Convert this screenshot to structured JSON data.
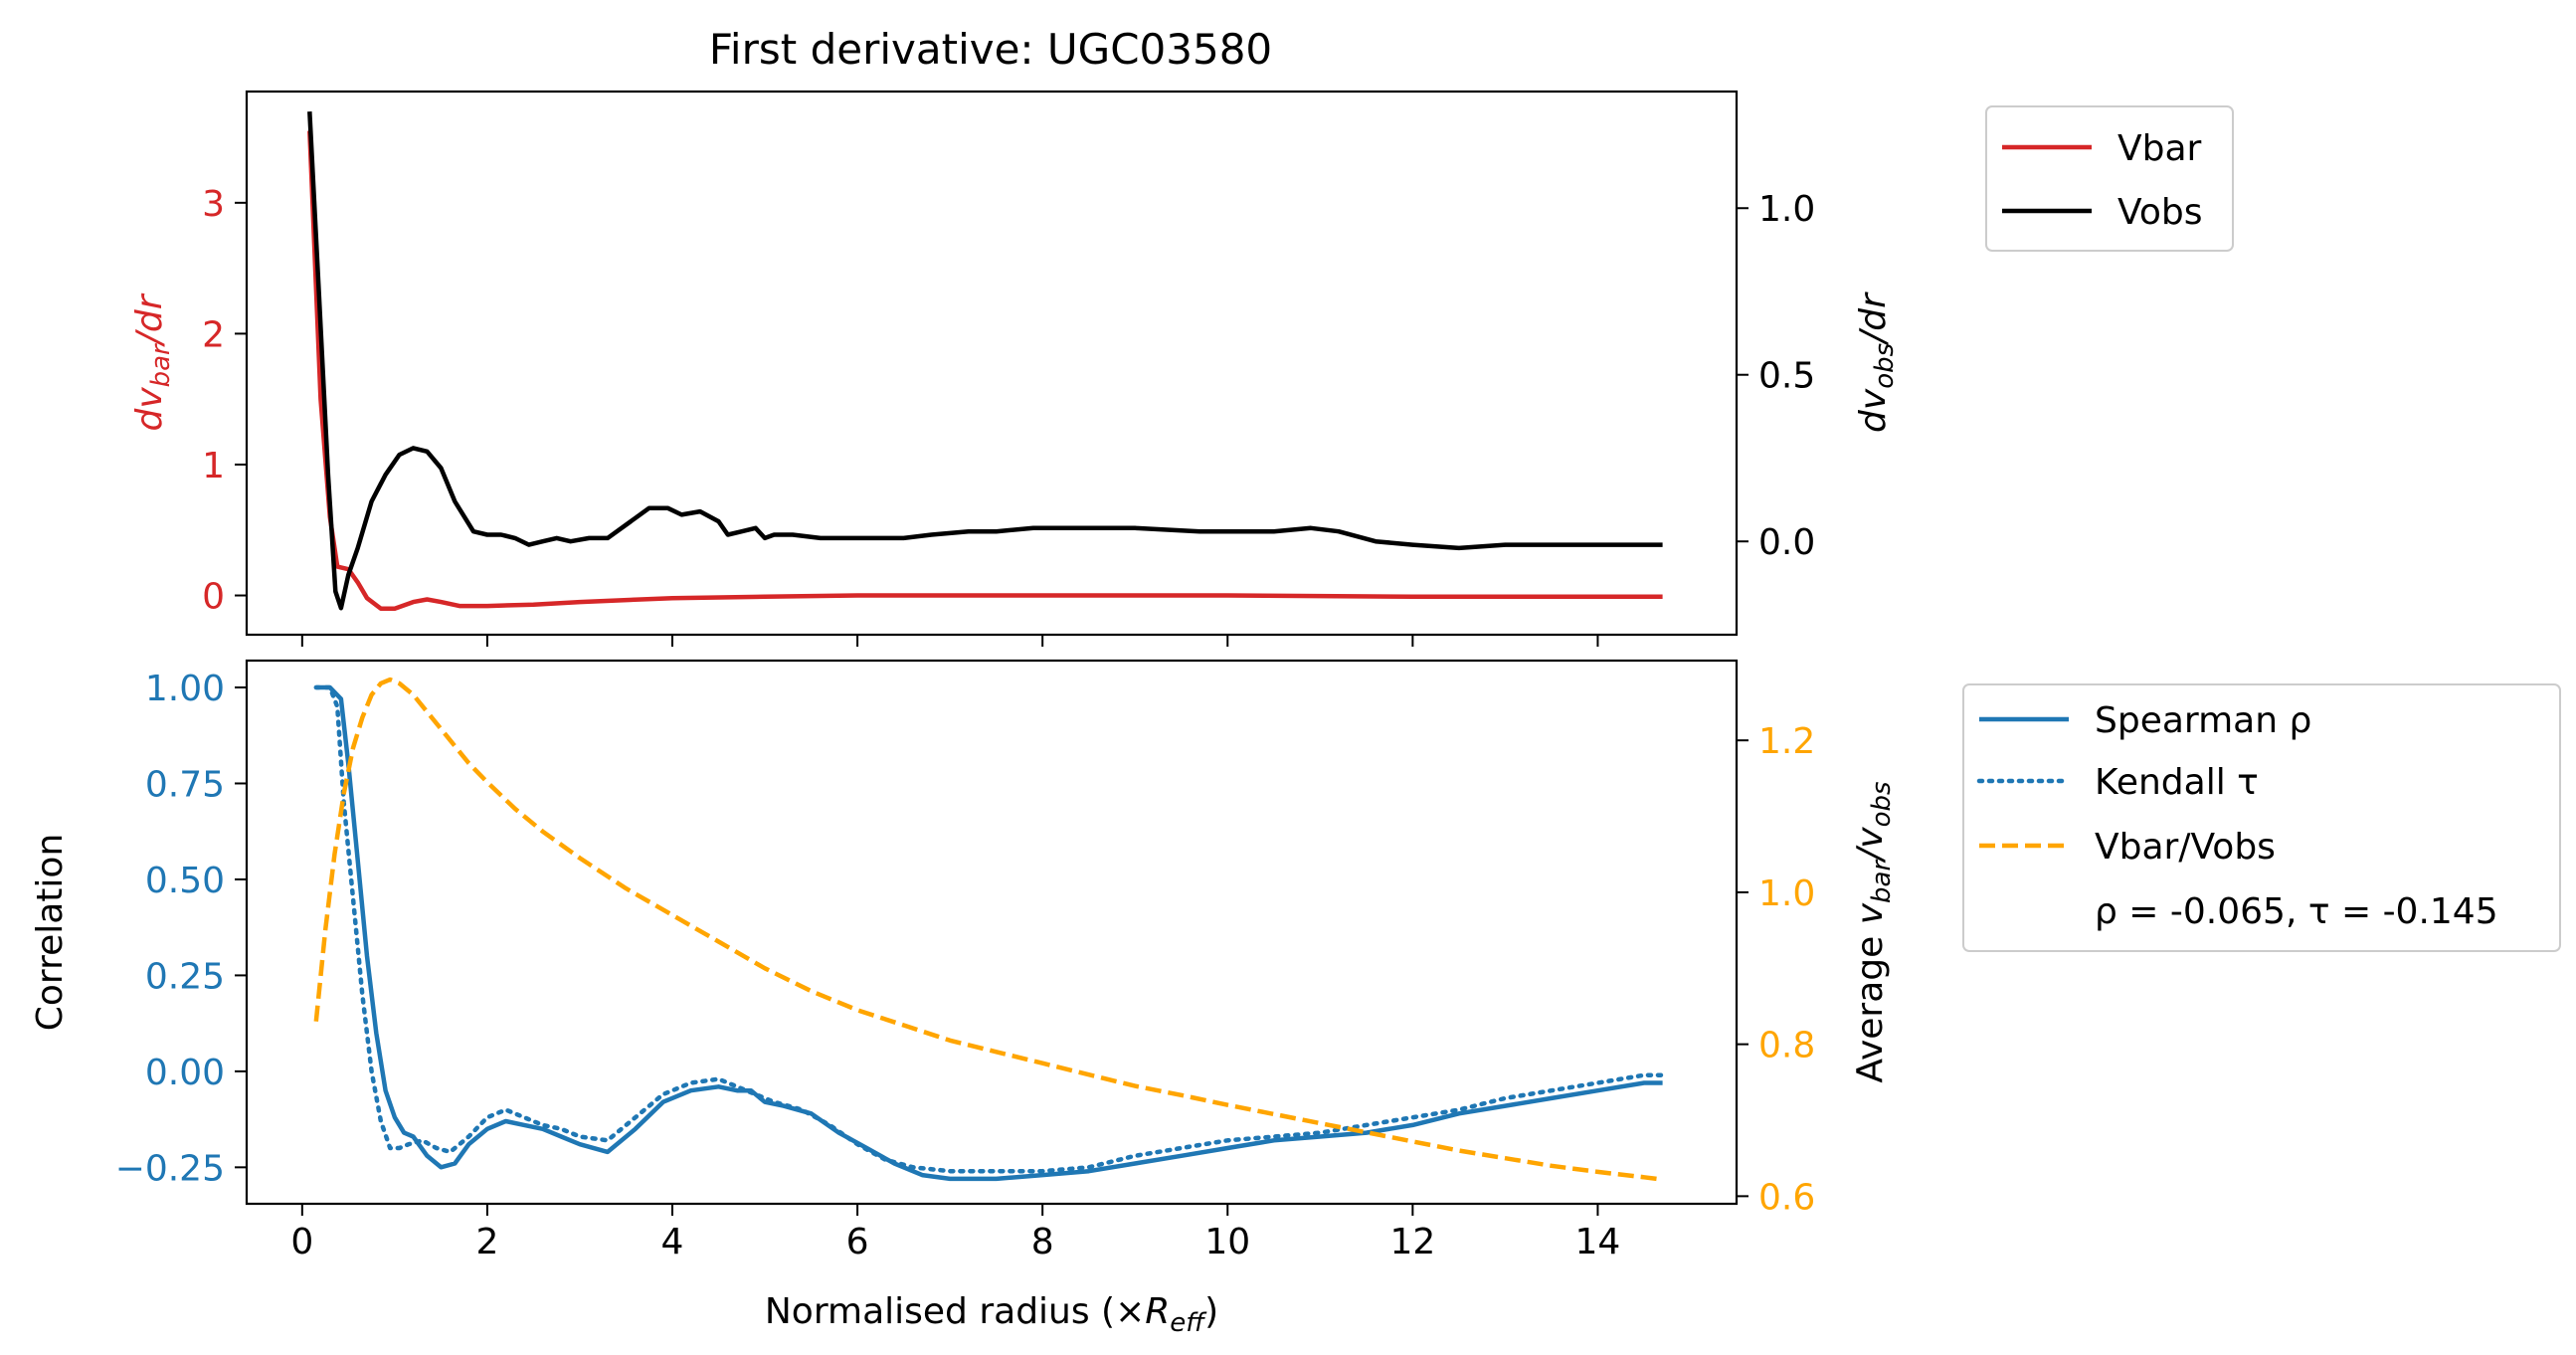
{
  "title": "First derivative: UGC03580",
  "colors": {
    "vbar": "#d62728",
    "vobs": "#000000",
    "spearman": "#1f77b4",
    "ratio": "#ffa500",
    "axis": "#000000"
  },
  "top_legend": {
    "vbar": "Vbar",
    "vobs": "Vobs"
  },
  "bottom_legend": {
    "spearman": "Spearman ρ",
    "kendall": "Kendall τ",
    "ratio": "Vbar/Vobs",
    "stats": "ρ = -0.065, τ = -0.145"
  },
  "chart_data": [
    {
      "type": "line",
      "title": "First derivative: UGC03580",
      "ylabel_left": "dv_bar/dr",
      "ylabel_right": "dv_obs/dr",
      "xlim": [
        -0.6,
        15.5
      ],
      "ylim_left": [
        -0.3,
        3.85
      ],
      "ylim_right": [
        -0.28,
        1.35
      ],
      "xticks": [
        0,
        2,
        4,
        6,
        8,
        10,
        12,
        14
      ],
      "yticks_left": [
        "0",
        "1",
        "2",
        "3"
      ],
      "yticks_left_values": [
        0,
        1,
        2,
        3
      ],
      "yticks_right": [
        "0.0",
        "0.5",
        "1.0"
      ],
      "yticks_right_values": [
        0,
        0.5,
        1.0
      ],
      "legend_position": "outside-right",
      "series": [
        {
          "name": "Vbar",
          "axis": "left",
          "x": [
            0.08,
            0.2,
            0.3,
            0.38,
            0.5,
            0.6,
            0.7,
            0.85,
            1.0,
            1.2,
            1.35,
            1.5,
            1.7,
            2.0,
            2.5,
            3.0,
            4.0,
            5.0,
            6.0,
            8.0,
            10.0,
            12.0,
            14.7
          ],
          "values": [
            3.55,
            1.5,
            0.6,
            0.22,
            0.2,
            0.1,
            -0.02,
            -0.1,
            -0.1,
            -0.05,
            -0.03,
            -0.05,
            -0.08,
            -0.08,
            -0.07,
            -0.05,
            -0.02,
            -0.01,
            0.0,
            0.0,
            0.0,
            -0.01,
            -0.01
          ]
        },
        {
          "name": "Vobs",
          "axis": "right",
          "x": [
            0.08,
            0.18,
            0.28,
            0.36,
            0.42,
            0.5,
            0.6,
            0.75,
            0.9,
            1.05,
            1.2,
            1.35,
            1.5,
            1.65,
            1.85,
            2.0,
            2.15,
            2.3,
            2.45,
            2.6,
            2.75,
            2.9,
            3.1,
            3.3,
            3.5,
            3.75,
            3.95,
            4.1,
            4.3,
            4.5,
            4.6,
            4.75,
            4.9,
            5.0,
            5.1,
            5.3,
            5.6,
            6.0,
            6.5,
            6.8,
            7.2,
            7.5,
            7.9,
            8.3,
            9.0,
            9.7,
            10.5,
            10.9,
            11.2,
            11.6,
            12.0,
            12.5,
            13.0,
            14.0,
            14.7
          ],
          "values": [
            1.29,
            0.75,
            0.2,
            -0.15,
            -0.2,
            -0.1,
            -0.02,
            0.12,
            0.2,
            0.26,
            0.28,
            0.27,
            0.22,
            0.12,
            0.03,
            0.02,
            0.02,
            0.01,
            -0.01,
            0.0,
            0.01,
            0.0,
            0.01,
            0.01,
            0.05,
            0.1,
            0.1,
            0.08,
            0.09,
            0.06,
            0.02,
            0.03,
            0.04,
            0.01,
            0.02,
            0.02,
            0.01,
            0.01,
            0.01,
            0.02,
            0.03,
            0.03,
            0.04,
            0.04,
            0.04,
            0.03,
            0.03,
            0.04,
            0.03,
            0.0,
            -0.01,
            -0.02,
            -0.01,
            -0.01,
            -0.01
          ]
        }
      ]
    },
    {
      "type": "line",
      "xlabel": "Normalised radius (×R_eff)",
      "ylabel_left": "Correlation",
      "ylabel_right": "Average v_bar/v_obs",
      "xlim": [
        -0.6,
        15.5
      ],
      "ylim_left": [
        -0.345,
        1.07
      ],
      "ylim_right": [
        0.59,
        1.305
      ],
      "xticks": [
        0,
        2,
        4,
        6,
        8,
        10,
        12,
        14
      ],
      "yticks_left": [
        "1.00",
        "0.75",
        "0.50",
        "0.25",
        "0.00",
        "−0.25"
      ],
      "yticks_left_values": [
        1.0,
        0.75,
        0.5,
        0.25,
        0.0,
        -0.25
      ],
      "yticks_right": [
        "1.2",
        "1.0",
        "0.8",
        "0.6"
      ],
      "yticks_right_values": [
        1.2,
        1.0,
        0.8,
        0.6
      ],
      "legend_position": "outside-right",
      "series": [
        {
          "name": "Spearman ρ",
          "axis": "left",
          "style": "solid",
          "x": [
            0.15,
            0.3,
            0.42,
            0.5,
            0.6,
            0.7,
            0.8,
            0.9,
            1.0,
            1.1,
            1.2,
            1.35,
            1.5,
            1.65,
            1.8,
            2.0,
            2.2,
            2.4,
            2.6,
            2.8,
            3.0,
            3.3,
            3.6,
            3.9,
            4.2,
            4.5,
            4.7,
            4.85,
            5.0,
            5.2,
            5.5,
            5.8,
            6.1,
            6.4,
            6.7,
            7.0,
            7.5,
            8.0,
            8.5,
            9.0,
            9.5,
            10.0,
            10.5,
            11.0,
            11.5,
            12.0,
            12.5,
            13.0,
            13.5,
            14.0,
            14.5,
            14.7
          ],
          "values": [
            1.0,
            1.0,
            0.97,
            0.8,
            0.55,
            0.3,
            0.1,
            -0.05,
            -0.12,
            -0.16,
            -0.17,
            -0.22,
            -0.25,
            -0.24,
            -0.19,
            -0.15,
            -0.13,
            -0.14,
            -0.15,
            -0.17,
            -0.19,
            -0.21,
            -0.15,
            -0.08,
            -0.05,
            -0.04,
            -0.05,
            -0.05,
            -0.08,
            -0.09,
            -0.11,
            -0.16,
            -0.2,
            -0.24,
            -0.27,
            -0.28,
            -0.28,
            -0.27,
            -0.26,
            -0.24,
            -0.22,
            -0.2,
            -0.18,
            -0.17,
            -0.16,
            -0.14,
            -0.11,
            -0.09,
            -0.07,
            -0.05,
            -0.03,
            -0.03
          ]
        },
        {
          "name": "Kendall τ",
          "axis": "left",
          "style": "dotted",
          "x": [
            0.15,
            0.3,
            0.38,
            0.45,
            0.55,
            0.65,
            0.75,
            0.85,
            0.95,
            1.05,
            1.15,
            1.3,
            1.45,
            1.6,
            1.8,
            2.0,
            2.2,
            2.4,
            2.6,
            2.8,
            3.0,
            3.3,
            3.6,
            3.9,
            4.2,
            4.5,
            4.7,
            4.9,
            5.1,
            5.4,
            5.7,
            6.0,
            6.3,
            6.6,
            7.0,
            7.5,
            8.0,
            8.5,
            9.0,
            9.5,
            10.0,
            10.5,
            11.0,
            11.5,
            12.0,
            12.5,
            13.0,
            13.5,
            14.0,
            14.5,
            14.7
          ],
          "values": [
            1.0,
            1.0,
            0.95,
            0.7,
            0.45,
            0.2,
            0.0,
            -0.13,
            -0.2,
            -0.2,
            -0.19,
            -0.18,
            -0.2,
            -0.21,
            -0.17,
            -0.12,
            -0.1,
            -0.12,
            -0.14,
            -0.15,
            -0.17,
            -0.18,
            -0.12,
            -0.06,
            -0.03,
            -0.02,
            -0.04,
            -0.06,
            -0.08,
            -0.1,
            -0.14,
            -0.19,
            -0.23,
            -0.25,
            -0.26,
            -0.26,
            -0.26,
            -0.25,
            -0.22,
            -0.2,
            -0.18,
            -0.17,
            -0.16,
            -0.14,
            -0.12,
            -0.1,
            -0.07,
            -0.05,
            -0.03,
            -0.01,
            -0.01
          ]
        },
        {
          "name": "Vbar/Vobs",
          "axis": "right",
          "style": "dashed",
          "x": [
            0.15,
            0.25,
            0.35,
            0.45,
            0.55,
            0.65,
            0.75,
            0.85,
            0.95,
            1.05,
            1.2,
            1.4,
            1.6,
            1.8,
            2.0,
            2.3,
            2.6,
            3.0,
            3.5,
            4.0,
            4.5,
            5.0,
            5.5,
            6.0,
            6.5,
            7.0,
            7.5,
            8.0,
            8.5,
            9.0,
            9.5,
            10.0,
            10.5,
            11.0,
            11.5,
            12.0,
            12.5,
            13.0,
            13.5,
            14.0,
            14.5,
            14.7
          ],
          "values": [
            0.83,
            0.95,
            1.05,
            1.13,
            1.19,
            1.23,
            1.26,
            1.275,
            1.28,
            1.275,
            1.26,
            1.23,
            1.2,
            1.17,
            1.145,
            1.11,
            1.08,
            1.045,
            1.005,
            0.97,
            0.935,
            0.9,
            0.87,
            0.845,
            0.825,
            0.805,
            0.79,
            0.775,
            0.76,
            0.745,
            0.733,
            0.72,
            0.708,
            0.696,
            0.684,
            0.672,
            0.66,
            0.65,
            0.64,
            0.632,
            0.625,
            0.622
          ]
        }
      ]
    }
  ]
}
